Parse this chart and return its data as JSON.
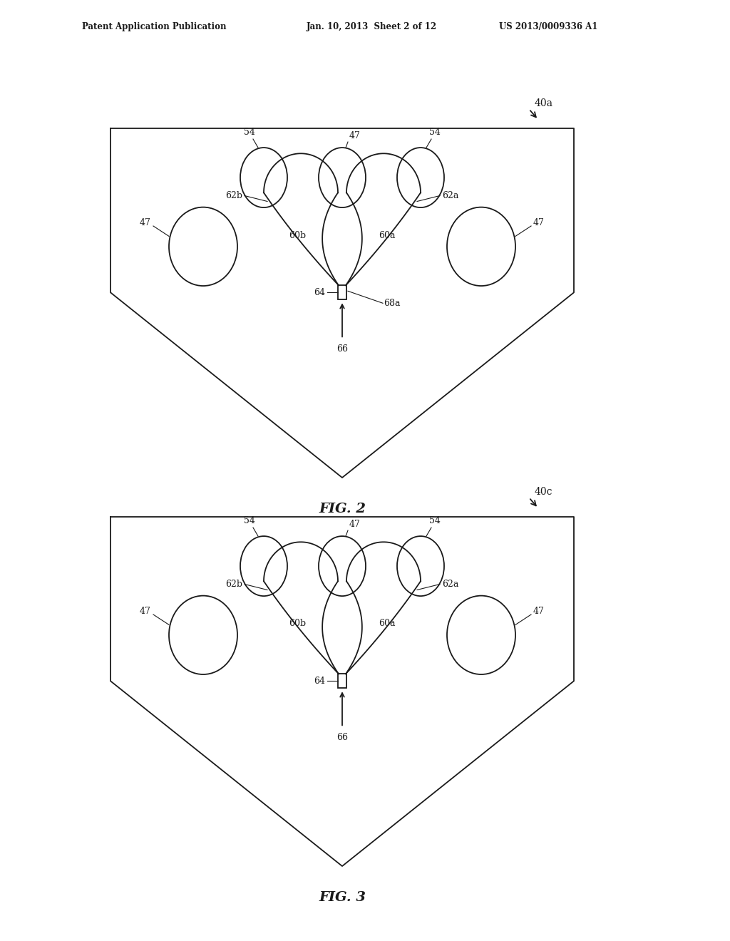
{
  "bg_color": "#ffffff",
  "line_color": "#1a1a1a",
  "header_left": "Patent Application Publication",
  "header_mid": "Jan. 10, 2013  Sheet 2 of 12",
  "header_right": "US 2013/0009336 A1"
}
